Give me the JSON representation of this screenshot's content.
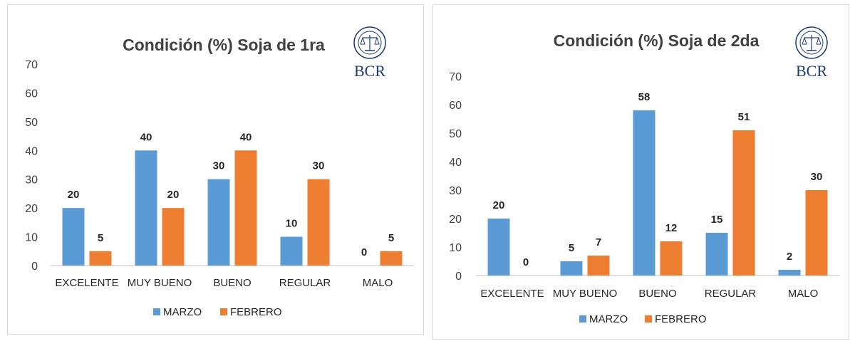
{
  "colors": {
    "marzo": "#5b9bd5",
    "febrero": "#ed7d31",
    "axis": "#bfbfbf",
    "logo": "#1f3d7a"
  },
  "logo": {
    "text": "BCR",
    "icon": "bcr-seal-icon"
  },
  "chart_data": [
    {
      "type": "bar",
      "title": "Condición (%) Soja de 1ra",
      "categories": [
        "EXCELENTE",
        "MUY BUENO",
        "BUENO",
        "REGULAR",
        "MALO"
      ],
      "series": [
        {
          "name": "MARZO",
          "values": [
            20,
            40,
            30,
            10,
            0
          ]
        },
        {
          "name": "FEBRERO",
          "values": [
            5,
            20,
            40,
            30,
            5
          ]
        }
      ],
      "ylim": [
        0,
        70
      ],
      "yticks": [
        0,
        10,
        20,
        30,
        40,
        50,
        60,
        70
      ],
      "grid": false,
      "legend": "bottom"
    },
    {
      "type": "bar",
      "title": "Condición (%)  Soja de 2da",
      "categories": [
        "EXCELENTE",
        "MUY BUENO",
        "BUENO",
        "REGULAR",
        "MALO"
      ],
      "series": [
        {
          "name": "MARZO",
          "values": [
            20,
            5,
            58,
            15,
            2
          ]
        },
        {
          "name": "FEBRERO",
          "values": [
            0,
            7,
            12,
            51,
            30
          ]
        }
      ],
      "ylim": [
        0,
        70
      ],
      "yticks": [
        0,
        10,
        20,
        30,
        40,
        50,
        60,
        70
      ],
      "grid": false,
      "legend": "bottom"
    }
  ]
}
